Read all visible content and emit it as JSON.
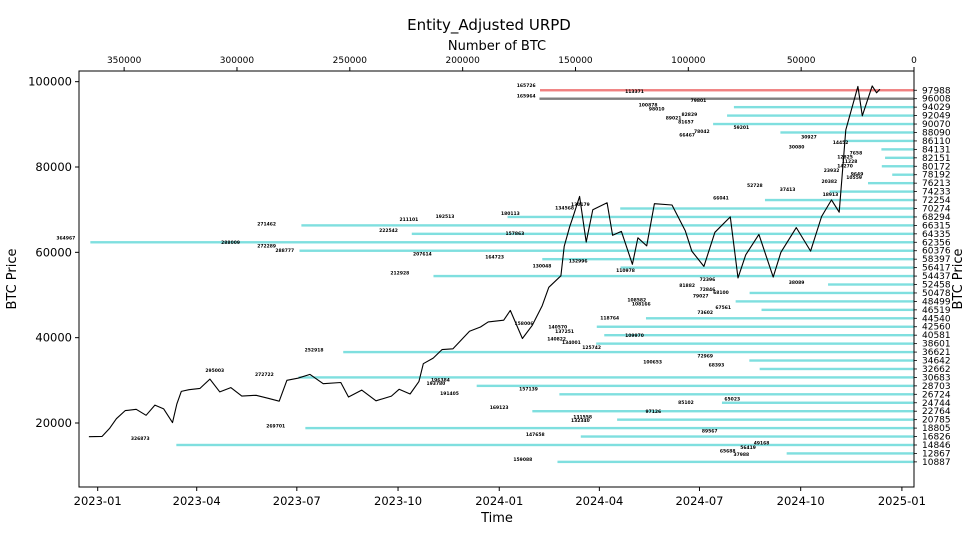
{
  "chart_data": {
    "type": "line",
    "title": "Entity_Adjusted URPD",
    "xlabel": "Time",
    "ylabel": "BTC Price",
    "ylabel_right": "BTC Price",
    "xlabel_top": "Number of BTC",
    "x_range": [
      "2022-12-15",
      "2025-01-12"
    ],
    "ylim": [
      5000,
      102500
    ],
    "top_xlim": [
      370000,
      0
    ],
    "x_ticks": [
      "2023-01",
      "2023-04",
      "2023-07",
      "2023-10",
      "2024-01",
      "2024-04",
      "2024-07",
      "2024-10",
      "2025-01"
    ],
    "y_ticks": [
      20000,
      40000,
      60000,
      80000,
      100000
    ],
    "top_ticks": [
      350000,
      300000,
      250000,
      200000,
      150000,
      100000,
      50000,
      0
    ],
    "price_series": {
      "name": "BTC Price",
      "color": "#000000",
      "points": [
        [
          "2022-12-24",
          16800
        ],
        [
          "2023-01-05",
          16850
        ],
        [
          "2023-01-12",
          18800
        ],
        [
          "2023-01-18",
          21000
        ],
        [
          "2023-01-26",
          22900
        ],
        [
          "2023-02-05",
          23200
        ],
        [
          "2023-02-14",
          21800
        ],
        [
          "2023-02-22",
          24200
        ],
        [
          "2023-03-02",
          23300
        ],
        [
          "2023-03-10",
          20100
        ],
        [
          "2023-03-14",
          24500
        ],
        [
          "2023-03-18",
          27400
        ],
        [
          "2023-03-25",
          27800
        ],
        [
          "2023-04-04",
          28100
        ],
        [
          "2023-04-13",
          30300
        ],
        [
          "2023-04-22",
          27300
        ],
        [
          "2023-05-02",
          28300
        ],
        [
          "2023-05-12",
          26300
        ],
        [
          "2023-05-25",
          26500
        ],
        [
          "2023-06-05",
          25800
        ],
        [
          "2023-06-15",
          25100
        ],
        [
          "2023-06-22",
          30000
        ],
        [
          "2023-07-02",
          30500
        ],
        [
          "2023-07-13",
          31400
        ],
        [
          "2023-07-25",
          29200
        ],
        [
          "2023-08-10",
          29500
        ],
        [
          "2023-08-17",
          26100
        ],
        [
          "2023-08-29",
          27700
        ],
        [
          "2023-09-11",
          25200
        ],
        [
          "2023-09-25",
          26300
        ],
        [
          "2023-10-02",
          27900
        ],
        [
          "2023-10-12",
          26800
        ],
        [
          "2023-10-20",
          29700
        ],
        [
          "2023-10-24",
          33900
        ],
        [
          "2023-11-02",
          35200
        ],
        [
          "2023-11-10",
          37200
        ],
        [
          "2023-11-20",
          37400
        ],
        [
          "2023-12-05",
          41500
        ],
        [
          "2023-12-15",
          42500
        ],
        [
          "2023-12-22",
          43700
        ],
        [
          "2024-01-05",
          44100
        ],
        [
          "2024-01-11",
          46400
        ],
        [
          "2024-01-22",
          39800
        ],
        [
          "2024-01-31",
          42900
        ],
        [
          "2024-02-09",
          47500
        ],
        [
          "2024-02-15",
          51800
        ],
        [
          "2024-02-26",
          54500
        ],
        [
          "2024-02-29",
          61400
        ],
        [
          "2024-03-05",
          66000
        ],
        [
          "2024-03-08",
          68300
        ],
        [
          "2024-03-14",
          73100
        ],
        [
          "2024-03-20",
          62400
        ],
        [
          "2024-03-26",
          70000
        ],
        [
          "2024-04-08",
          71600
        ],
        [
          "2024-04-13",
          64000
        ],
        [
          "2024-04-21",
          64900
        ],
        [
          "2024-05-01",
          57200
        ],
        [
          "2024-05-06",
          63400
        ],
        [
          "2024-05-14",
          61500
        ],
        [
          "2024-05-21",
          71400
        ],
        [
          "2024-06-06",
          71100
        ],
        [
          "2024-06-18",
          65100
        ],
        [
          "2024-06-24",
          60300
        ],
        [
          "2024-07-05",
          56700
        ],
        [
          "2024-07-15",
          64700
        ],
        [
          "2024-07-29",
          68300
        ],
        [
          "2024-08-05",
          54000
        ],
        [
          "2024-08-12",
          59400
        ],
        [
          "2024-08-24",
          64200
        ],
        [
          "2024-09-06",
          54200
        ],
        [
          "2024-09-13",
          60000
        ],
        [
          "2024-09-27",
          65800
        ],
        [
          "2024-10-10",
          60300
        ],
        [
          "2024-10-20",
          68400
        ],
        [
          "2024-10-29",
          72300
        ],
        [
          "2024-11-05",
          69400
        ],
        [
          "2024-11-11",
          88700
        ],
        [
          "2024-11-22",
          98900
        ],
        [
          "2024-11-26",
          92000
        ],
        [
          "2024-12-05",
          99000
        ],
        [
          "2024-12-09",
          97400
        ],
        [
          "2024-12-12",
          98200
        ]
      ]
    },
    "urpd_bars": [
      {
        "price": 97988,
        "btc": 165726,
        "color": "#f08080"
      },
      {
        "price": 96008,
        "btc": 165964,
        "color": "#808080"
      },
      {
        "price": 94029,
        "btc": 79801,
        "color": "#7fdfdf"
      },
      {
        "price": 92049,
        "btc": 82829,
        "color": "#7fdfdf"
      },
      {
        "price": 90070,
        "btc": 89021,
        "color": "#7fdfdf"
      },
      {
        "price": 88090,
        "btc": 59201,
        "color": "#7fdfdf"
      },
      {
        "price": 86110,
        "btc": 30927,
        "color": "#7fdfdf"
      },
      {
        "price": 84131,
        "btc": 14452,
        "color": "#7fdfdf"
      },
      {
        "price": 82151,
        "btc": 12825,
        "color": "#7fdfdf"
      },
      {
        "price": 80172,
        "btc": 14270,
        "color": "#7fdfdf"
      },
      {
        "price": 78192,
        "btc": 9649,
        "color": "#7fdfdf"
      },
      {
        "price": 76213,
        "btc": 20382,
        "color": "#7fdfdf"
      },
      {
        "price": 74233,
        "btc": 37413,
        "color": "#7fdfdf"
      },
      {
        "price": 72254,
        "btc": 66041,
        "color": "#7fdfdf"
      },
      {
        "price": 70274,
        "btc": 130179,
        "color": "#7fdfdf"
      },
      {
        "price": 68294,
        "btc": 180113,
        "color": "#7fdfdf"
      },
      {
        "price": 66315,
        "btc": 271462,
        "color": "#7fdfdf"
      },
      {
        "price": 64335,
        "btc": 222542,
        "color": "#7fdfdf"
      },
      {
        "price": 62356,
        "btc": 364967,
        "color": "#7fdfdf"
      },
      {
        "price": 60376,
        "btc": 272289,
        "color": "#7fdfdf"
      },
      {
        "price": 58397,
        "btc": 164723,
        "color": "#7fdfdf"
      },
      {
        "price": 56417,
        "btc": 130048,
        "color": "#7fdfdf"
      },
      {
        "price": 54437,
        "btc": 212928,
        "color": "#7fdfdf"
      },
      {
        "price": 52458,
        "btc": 38089,
        "color": "#7fdfdf"
      },
      {
        "price": 50478,
        "btc": 72846,
        "color": "#7fdfdf"
      },
      {
        "price": 48499,
        "btc": 79027,
        "color": "#7fdfdf"
      },
      {
        "price": 46519,
        "btc": 67561,
        "color": "#7fdfdf"
      },
      {
        "price": 44540,
        "btc": 118764,
        "color": "#7fdfdf"
      },
      {
        "price": 42560,
        "btc": 140570,
        "color": "#7fdfdf"
      },
      {
        "price": 40581,
        "btc": 137251,
        "color": "#7fdfdf"
      },
      {
        "price": 38601,
        "btc": 140822,
        "color": "#7fdfdf"
      },
      {
        "price": 36621,
        "btc": 252918,
        "color": "#7fdfdf"
      },
      {
        "price": 34642,
        "btc": 72969,
        "color": "#7fdfdf"
      },
      {
        "price": 32662,
        "btc": 68393,
        "color": "#7fdfdf"
      },
      {
        "price": 30683,
        "btc": 272722,
        "color": "#7fdfdf"
      },
      {
        "price": 28703,
        "btc": 193780,
        "color": "#7fdfdf"
      },
      {
        "price": 26724,
        "btc": 157139,
        "color": "#7fdfdf"
      },
      {
        "price": 24744,
        "btc": 85102,
        "color": "#7fdfdf"
      },
      {
        "price": 22764,
        "btc": 169123,
        "color": "#7fdfdf"
      },
      {
        "price": 20785,
        "btc": 131558,
        "color": "#7fdfdf"
      },
      {
        "price": 18805,
        "btc": 269701,
        "color": "#7fdfdf"
      },
      {
        "price": 16826,
        "btc": 147658,
        "color": "#7fdfdf"
      },
      {
        "price": 14846,
        "btc": 326873,
        "color": "#7fdfdf"
      },
      {
        "price": 12867,
        "btc": 56419,
        "color": "#7fdfdf"
      },
      {
        "price": 10887,
        "btc": 157988,
        "color": "#7fdfdf"
      }
    ],
    "right_ticks": [
      "97988",
      "96008",
      "94029",
      "92049",
      "90070",
      "88090",
      "86110",
      "84131",
      "82151",
      "80172",
      "78192",
      "76213",
      "74233",
      "72254",
      "70274",
      "68294",
      "66315",
      "64335",
      "62356",
      "60376",
      "58397",
      "56417",
      "54437",
      "52458",
      "50478",
      "48499",
      "46519",
      "44540",
      "42560",
      "40581",
      "38601",
      "36621",
      "34642",
      "32662",
      "30683",
      "28703",
      "26724",
      "24744",
      "22764",
      "20785",
      "18805",
      "16826",
      "14846",
      "12867",
      "10887"
    ],
    "annotations": [
      {
        "text": "165726",
        "btc": 176000,
        "price": 98700
      },
      {
        "text": "165964",
        "btc": 176000,
        "price": 96300
      },
      {
        "text": "113371",
        "btc": 128000,
        "price": 97400
      },
      {
        "text": "79801",
        "btc": 99000,
        "price": 95200
      },
      {
        "text": "100878",
        "btc": 122000,
        "price": 94200
      },
      {
        "text": "98010",
        "btc": 117500,
        "price": 93300
      },
      {
        "text": "82829",
        "btc": 103000,
        "price": 92000
      },
      {
        "text": "89021",
        "btc": 110000,
        "price": 91100
      },
      {
        "text": "81657",
        "btc": 104500,
        "price": 90200
      },
      {
        "text": "59201",
        "btc": 80000,
        "price": 88900
      },
      {
        "text": "78042",
        "btc": 97500,
        "price": 88000
      },
      {
        "text": "66467",
        "btc": 104000,
        "price": 87100
      },
      {
        "text": "30927",
        "btc": 50000,
        "price": 86700
      },
      {
        "text": "14452",
        "btc": 36000,
        "price": 85400
      },
      {
        "text": "30080",
        "btc": 55500,
        "price": 84300
      },
      {
        "text": "7658",
        "btc": 28500,
        "price": 82900
      },
      {
        "text": "12825",
        "btc": 34000,
        "price": 82000
      },
      {
        "text": "11228",
        "btc": 32000,
        "price": 80900
      },
      {
        "text": "14270",
        "btc": 34000,
        "price": 79900
      },
      {
        "text": "23932",
        "btc": 40000,
        "price": 78800
      },
      {
        "text": "9649",
        "btc": 28000,
        "price": 78000
      },
      {
        "text": "10559",
        "btc": 30000,
        "price": 77200
      },
      {
        "text": "20382",
        "btc": 41000,
        "price": 76300
      },
      {
        "text": "52728",
        "btc": 74000,
        "price": 75300
      },
      {
        "text": "37413",
        "btc": 59500,
        "price": 74400
      },
      {
        "text": "18913",
        "btc": 40500,
        "price": 73200
      },
      {
        "text": "66041",
        "btc": 89000,
        "price": 72400
      },
      {
        "text": "130179",
        "btc": 152000,
        "price": 70900
      },
      {
        "text": "134568",
        "btc": 159000,
        "price": 70000
      },
      {
        "text": "180113",
        "btc": 183000,
        "price": 68800
      },
      {
        "text": "192513",
        "btc": 212000,
        "price": 68100
      },
      {
        "text": "211101",
        "btc": 228000,
        "price": 67300
      },
      {
        "text": "271462",
        "btc": 291000,
        "price": 66300
      },
      {
        "text": "222542",
        "btc": 237000,
        "price": 64800
      },
      {
        "text": "157863",
        "btc": 181000,
        "price": 64100
      },
      {
        "text": "364967",
        "btc": 380000,
        "price": 63000
      },
      {
        "text": "288009",
        "btc": 307000,
        "price": 62000
      },
      {
        "text": "272289",
        "btc": 291000,
        "price": 61100
      },
      {
        "text": "288777",
        "btc": 283000,
        "price": 60100
      },
      {
        "text": "207614",
        "btc": 222000,
        "price": 59200
      },
      {
        "text": "164723",
        "btc": 190000,
        "price": 58500
      },
      {
        "text": "132996",
        "btc": 153000,
        "price": 57600
      },
      {
        "text": "130048",
        "btc": 169000,
        "price": 56500
      },
      {
        "text": "110978",
        "btc": 132000,
        "price": 55400
      },
      {
        "text": "212928",
        "btc": 232000,
        "price": 54800
      },
      {
        "text": "72396",
        "btc": 95000,
        "price": 53300
      },
      {
        "text": "38089",
        "btc": 55500,
        "price": 52600
      },
      {
        "text": "81882",
        "btc": 104000,
        "price": 51900
      },
      {
        "text": "72846",
        "btc": 95000,
        "price": 50900
      },
      {
        "text": "68100",
        "btc": 89000,
        "price": 50200
      },
      {
        "text": "79027",
        "btc": 98000,
        "price": 49400
      },
      {
        "text": "108582",
        "btc": 127000,
        "price": 48500
      },
      {
        "text": "108166",
        "btc": 125000,
        "price": 47500
      },
      {
        "text": "67561",
        "btc": 88000,
        "price": 46700
      },
      {
        "text": "73602",
        "btc": 96000,
        "price": 45500
      },
      {
        "text": "118764",
        "btc": 139000,
        "price": 44200
      },
      {
        "text": "158006",
        "btc": 177000,
        "price": 43000
      },
      {
        "text": "140570",
        "btc": 162000,
        "price": 42100
      },
      {
        "text": "137251",
        "btc": 159000,
        "price": 41100
      },
      {
        "text": "109970",
        "btc": 128000,
        "price": 40100
      },
      {
        "text": "140822",
        "btc": 162500,
        "price": 39300
      },
      {
        "text": "134001",
        "btc": 156000,
        "price": 38500
      },
      {
        "text": "125742",
        "btc": 147000,
        "price": 37400
      },
      {
        "text": "252918",
        "btc": 270000,
        "price": 36700
      },
      {
        "text": "72969",
        "btc": 96000,
        "price": 35300
      },
      {
        "text": "100653",
        "btc": 120000,
        "price": 34000
      },
      {
        "text": "68393",
        "btc": 91000,
        "price": 33200
      },
      {
        "text": "295003",
        "btc": 314000,
        "price": 32000
      },
      {
        "text": "272722",
        "btc": 292000,
        "price": 31000
      },
      {
        "text": "196384",
        "btc": 214000,
        "price": 29700
      },
      {
        "text": "193780",
        "btc": 216000,
        "price": 28900
      },
      {
        "text": "157139",
        "btc": 175000,
        "price": 27600
      },
      {
        "text": "191405",
        "btc": 210000,
        "price": 26600
      },
      {
        "text": "85102",
        "btc": 104500,
        "price": 24400
      },
      {
        "text": "65023",
        "btc": 84000,
        "price": 25300
      },
      {
        "text": "169123",
        "btc": 188000,
        "price": 23300
      },
      {
        "text": "97126",
        "btc": 119000,
        "price": 22400
      },
      {
        "text": "131558",
        "btc": 151000,
        "price": 21000
      },
      {
        "text": "132340",
        "btc": 152000,
        "price": 20200
      },
      {
        "text": "269701",
        "btc": 287000,
        "price": 19000
      },
      {
        "text": "89567",
        "btc": 94000,
        "price": 17800
      },
      {
        "text": "147658",
        "btc": 172000,
        "price": 17000
      },
      {
        "text": "326873",
        "btc": 347000,
        "price": 16000
      },
      {
        "text": "49168",
        "btc": 71000,
        "price": 15000
      },
      {
        "text": "56419",
        "btc": 77000,
        "price": 13900
      },
      {
        "text": "65688",
        "btc": 86000,
        "price": 13100
      },
      {
        "text": "37988",
        "btc": 80000,
        "price": 12300
      },
      {
        "text": "159088",
        "btc": 177500,
        "price": 11100
      }
    ]
  }
}
